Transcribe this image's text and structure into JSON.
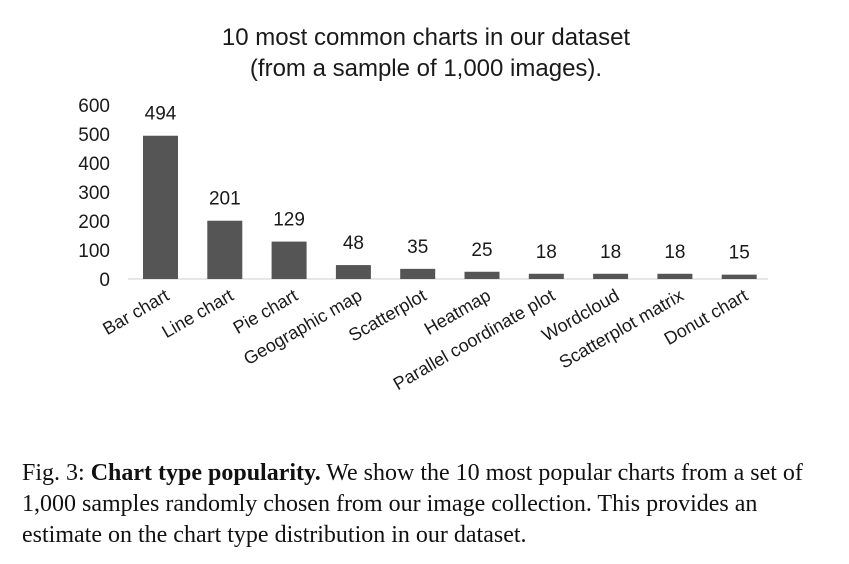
{
  "chart_data": {
    "type": "bar",
    "title_lines": [
      "10 most common charts in our dataset",
      "(from a sample of 1,000 images)."
    ],
    "categories": [
      "Bar chart",
      "Line chart",
      "Pie chart",
      "Geographic map",
      "Scatterplot",
      "Heatmap",
      "Parallel coordinate plot",
      "Wordcloud",
      "Scatterplot matrix",
      "Donut chart"
    ],
    "values": [
      494,
      201,
      129,
      48,
      35,
      25,
      18,
      18,
      18,
      15
    ],
    "yticks": [
      0,
      100,
      200,
      300,
      400,
      500,
      600
    ],
    "ylim": [
      0,
      600
    ],
    "xlabel": "",
    "ylabel": "",
    "bar_color": "#555555",
    "grid": false
  },
  "caption": {
    "prefix": "Fig. 3: ",
    "bold": "Chart type popularity.",
    "text": " We show the 10 most popular charts from a set of 1,000 samples randomly chosen from our image collection. This provides an estimate on the chart type distribution in our dataset."
  }
}
